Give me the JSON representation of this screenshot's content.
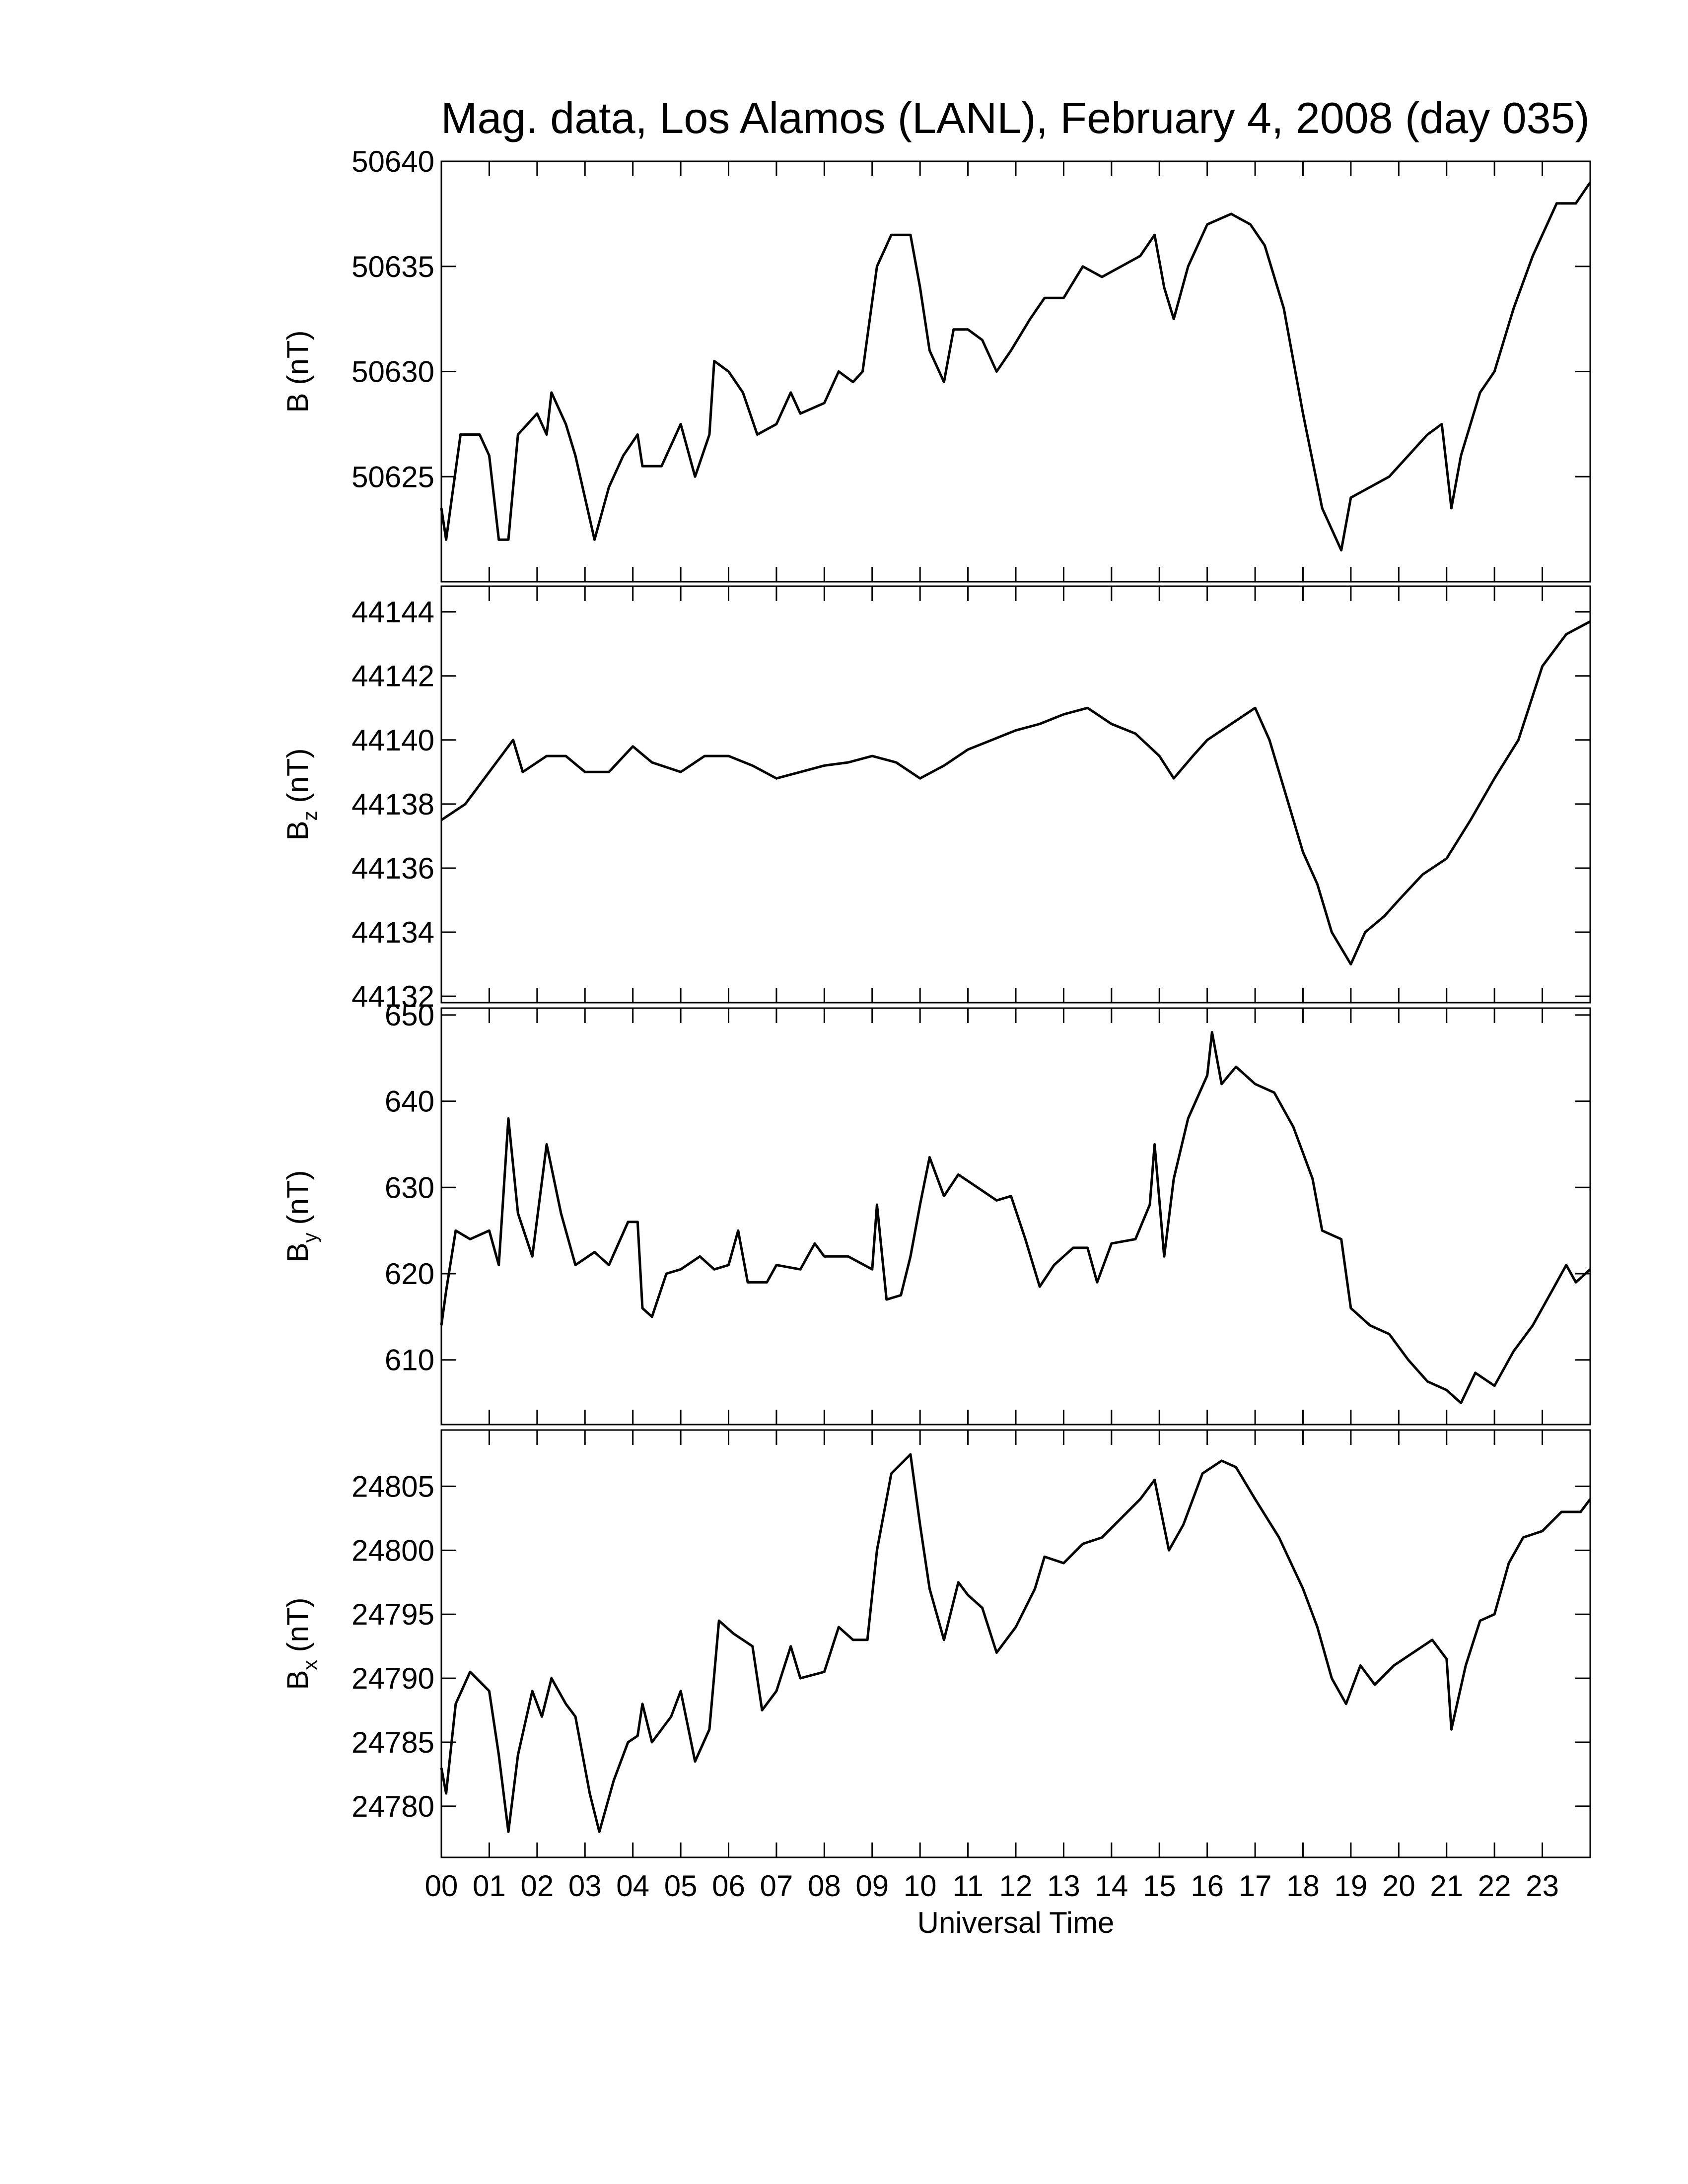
{
  "chart_data": [
    {
      "type": "line",
      "title": "Mag. data, Los Alamos (LANL), February 4, 2008 (day 035)",
      "ylabel": "B",
      "ylabel_unit": "(nT)",
      "color": "#000000",
      "xlim": [
        0,
        24
      ],
      "ylim": [
        50620,
        50640
      ],
      "yticks": [
        50625,
        50630,
        50635,
        50640
      ],
      "x": [
        0,
        0.1,
        0.4,
        0.8,
        1.0,
        1.2,
        1.4,
        1.6,
        2.0,
        2.2,
        2.3,
        2.6,
        2.8,
        3.2,
        3.5,
        3.8,
        4.1,
        4.2,
        4.6,
        5.0,
        5.3,
        5.6,
        5.7,
        6.0,
        6.3,
        6.6,
        7.0,
        7.3,
        7.5,
        8.0,
        8.3,
        8.6,
        8.8,
        9.1,
        9.4,
        9.8,
        10.0,
        10.2,
        10.5,
        10.7,
        11.0,
        11.3,
        11.6,
        11.9,
        12.3,
        12.6,
        13.0,
        13.4,
        13.8,
        14.2,
        14.6,
        14.9,
        15.1,
        15.3,
        15.6,
        16.0,
        16.5,
        16.9,
        17.2,
        17.6,
        18.0,
        18.4,
        18.8,
        19.0,
        19.4,
        19.8,
        20.2,
        20.6,
        20.9,
        21.1,
        21.3,
        21.7,
        22.0,
        22.4,
        22.8,
        23.3,
        23.7,
        24.0
      ],
      "values": [
        50623.5,
        50622,
        50627,
        50627,
        50626,
        50622,
        50622,
        50627,
        50628,
        50627,
        50629,
        50627.5,
        50626,
        50622,
        50624.5,
        50626,
        50627,
        50625.5,
        50625.5,
        50627.5,
        50625,
        50627,
        50630.5,
        50630,
        50629,
        50627,
        50627.5,
        50629,
        50628,
        50628.5,
        50630,
        50629.5,
        50630,
        50635,
        50636.5,
        50636.5,
        50634,
        50631,
        50629.5,
        50632,
        50632,
        50631.5,
        50630,
        50631,
        50632.5,
        50633.5,
        50633.5,
        50635,
        50634.5,
        50635,
        50635.5,
        50636.5,
        50634,
        50632.5,
        50635,
        50637,
        50637.5,
        50637,
        50636,
        50633,
        50628,
        50623.5,
        50621.5,
        50624,
        50624.5,
        50625,
        50626,
        50627,
        50627.5,
        50623.5,
        50626,
        50629,
        50630,
        50633,
        50635.5,
        50638,
        50638,
        50639
      ]
    },
    {
      "type": "line",
      "ylabel": "B",
      "ylabel_sub": "z",
      "ylabel_unit": "(nT)",
      "color": "#000000",
      "xlim": [
        0,
        24
      ],
      "ylim": [
        44131.8,
        44144.8
      ],
      "yticks": [
        44132,
        44134,
        44136,
        44138,
        44140,
        44142,
        44144
      ],
      "x": [
        0,
        0.5,
        1.0,
        1.5,
        1.7,
        2.2,
        2.6,
        3.0,
        3.5,
        4.0,
        4.4,
        5.0,
        5.5,
        6.0,
        6.5,
        7.0,
        7.5,
        8.0,
        8.5,
        9.0,
        9.5,
        10.0,
        10.5,
        11.0,
        11.5,
        12.0,
        12.5,
        13.0,
        13.5,
        14.0,
        14.5,
        15.0,
        15.3,
        15.7,
        16.0,
        16.5,
        17.0,
        17.3,
        17.7,
        18.0,
        18.3,
        18.6,
        19.0,
        19.3,
        19.7,
        20.0,
        20.5,
        21.0,
        21.5,
        22.0,
        22.5,
        23.0,
        23.5,
        24.0
      ],
      "values": [
        44137.5,
        44138,
        44139,
        44140,
        44139,
        44139.5,
        44139.5,
        44139,
        44139,
        44139.8,
        44139.3,
        44139,
        44139.5,
        44139.5,
        44139.2,
        44138.8,
        44139,
        44139.2,
        44139.3,
        44139.5,
        44139.3,
        44138.8,
        44139.2,
        44139.7,
        44140,
        44140.3,
        44140.5,
        44140.8,
        44141,
        44140.5,
        44140.2,
        44139.5,
        44138.8,
        44139.5,
        44140,
        44140.5,
        44141,
        44140,
        44138,
        44136.5,
        44135.5,
        44134,
        44133,
        44134,
        44134.5,
        44135,
        44135.8,
        44136.3,
        44137.5,
        44138.8,
        44140,
        44142.3,
        44143.3,
        44143.7
      ]
    },
    {
      "type": "line",
      "ylabel": "B",
      "ylabel_sub": "y",
      "ylabel_unit": "(nT)",
      "color": "#000000",
      "xlim": [
        0,
        24
      ],
      "ylim": [
        602.5,
        650.8
      ],
      "yticks": [
        610,
        620,
        630,
        640,
        650
      ],
      "x": [
        0,
        0.1,
        0.3,
        0.6,
        1.0,
        1.2,
        1.4,
        1.6,
        1.9,
        2.2,
        2.5,
        2.8,
        3.2,
        3.5,
        3.9,
        4.1,
        4.2,
        4.4,
        4.7,
        5.0,
        5.4,
        5.7,
        6.0,
        6.2,
        6.4,
        6.8,
        7.0,
        7.5,
        7.8,
        8.0,
        8.5,
        9.0,
        9.1,
        9.3,
        9.6,
        9.8,
        10.0,
        10.2,
        10.5,
        10.8,
        11.2,
        11.6,
        11.9,
        12.2,
        12.5,
        12.8,
        13.2,
        13.5,
        13.7,
        14.0,
        14.5,
        14.8,
        14.9,
        15.1,
        15.3,
        15.6,
        16.0,
        16.1,
        16.3,
        16.6,
        17.0,
        17.4,
        17.8,
        18.2,
        18.4,
        18.8,
        19.0,
        19.4,
        19.8,
        20.2,
        20.6,
        21.0,
        21.3,
        21.6,
        22.0,
        22.4,
        22.8,
        23.2,
        23.5,
        23.7,
        24.0
      ],
      "values": [
        614,
        618,
        625,
        624,
        625,
        621,
        638,
        627,
        622,
        635,
        627,
        621,
        622.5,
        621,
        626,
        626,
        616,
        615,
        620,
        620.5,
        622,
        620.5,
        621,
        625,
        619,
        619,
        621,
        620.5,
        623.5,
        622,
        622,
        620.5,
        628,
        617,
        617.5,
        622,
        628,
        633.5,
        629,
        631.5,
        630,
        628.5,
        629,
        624,
        618.5,
        621,
        623,
        623,
        619,
        623.5,
        624,
        628,
        635,
        622,
        631,
        638,
        643,
        648,
        642,
        644,
        642,
        641,
        637,
        631,
        625,
        624,
        616,
        614,
        613,
        610,
        607.5,
        606.5,
        605,
        608.5,
        607,
        611,
        614,
        618,
        621,
        619,
        620.5
      ]
    },
    {
      "type": "line",
      "ylabel": "B",
      "ylabel_sub": "x",
      "ylabel_unit": "(nT)",
      "xlabel": "Universal Time",
      "color": "#000000",
      "xlim": [
        0,
        24
      ],
      "ylim": [
        24776,
        24809.4
      ],
      "yticks": [
        24780,
        24785,
        24790,
        24795,
        24800,
        24805
      ],
      "xticks": [
        {
          "value": 0,
          "label": "00"
        },
        {
          "value": 1,
          "label": "01"
        },
        {
          "value": 2,
          "label": "02"
        },
        {
          "value": 3,
          "label": "03"
        },
        {
          "value": 4,
          "label": "04"
        },
        {
          "value": 5,
          "label": "05"
        },
        {
          "value": 6,
          "label": "06"
        },
        {
          "value": 7,
          "label": "07"
        },
        {
          "value": 8,
          "label": "08"
        },
        {
          "value": 9,
          "label": "09"
        },
        {
          "value": 10,
          "label": "10"
        },
        {
          "value": 11,
          "label": "11"
        },
        {
          "value": 12,
          "label": "12"
        },
        {
          "value": 13,
          "label": "13"
        },
        {
          "value": 14,
          "label": "14"
        },
        {
          "value": 15,
          "label": "15"
        },
        {
          "value": 16,
          "label": "16"
        },
        {
          "value": 17,
          "label": "17"
        },
        {
          "value": 18,
          "label": "18"
        },
        {
          "value": 19,
          "label": "19"
        },
        {
          "value": 20,
          "label": "20"
        },
        {
          "value": 21,
          "label": "21"
        },
        {
          "value": 22,
          "label": "22"
        },
        {
          "value": 23,
          "label": "23"
        }
      ],
      "x": [
        0,
        0.1,
        0.3,
        0.6,
        1.0,
        1.2,
        1.4,
        1.6,
        1.9,
        2.1,
        2.3,
        2.6,
        2.8,
        3.1,
        3.3,
        3.6,
        3.9,
        4.1,
        4.2,
        4.4,
        4.8,
        5.0,
        5.3,
        5.6,
        5.8,
        6.1,
        6.5,
        6.7,
        7.0,
        7.3,
        7.5,
        8.0,
        8.3,
        8.6,
        8.9,
        9.1,
        9.4,
        9.8,
        10.0,
        10.2,
        10.5,
        10.8,
        11.0,
        11.3,
        11.6,
        12.0,
        12.4,
        12.6,
        13.0,
        13.4,
        13.8,
        14.2,
        14.6,
        14.9,
        15.2,
        15.5,
        15.9,
        16.3,
        16.6,
        17.0,
        17.5,
        18.0,
        18.3,
        18.6,
        18.9,
        19.2,
        19.5,
        19.9,
        20.3,
        20.7,
        21.0,
        21.1,
        21.4,
        21.7,
        22.0,
        22.3,
        22.6,
        23.0,
        23.4,
        23.8,
        24.0
      ],
      "values": [
        24783,
        24781,
        24788,
        24790.5,
        24789,
        24784,
        24778,
        24784,
        24789,
        24787,
        24790,
        24788,
        24787,
        24781,
        24778,
        24782,
        24785,
        24785.5,
        24788,
        24785,
        24787,
        24789,
        24783.5,
        24786,
        24794.5,
        24793.5,
        24792.5,
        24787.5,
        24789,
        24792.5,
        24790,
        24790.5,
        24794,
        24793,
        24793,
        24800,
        24806,
        24807.5,
        24802,
        24797,
        24793,
        24797.5,
        24796.5,
        24795.5,
        24792,
        24794,
        24797,
        24799.5,
        24799,
        24800.5,
        24801,
        24802.5,
        24804,
        24805.5,
        24800,
        24802,
        24806,
        24807,
        24806.5,
        24804,
        24801,
        24797,
        24794,
        24790,
        24788,
        24791,
        24789.5,
        24791,
        24792,
        24793,
        24791.5,
        24786,
        24791,
        24794.5,
        24795,
        24799,
        24801,
        24801.5,
        24803,
        24803,
        24804
      ]
    }
  ]
}
